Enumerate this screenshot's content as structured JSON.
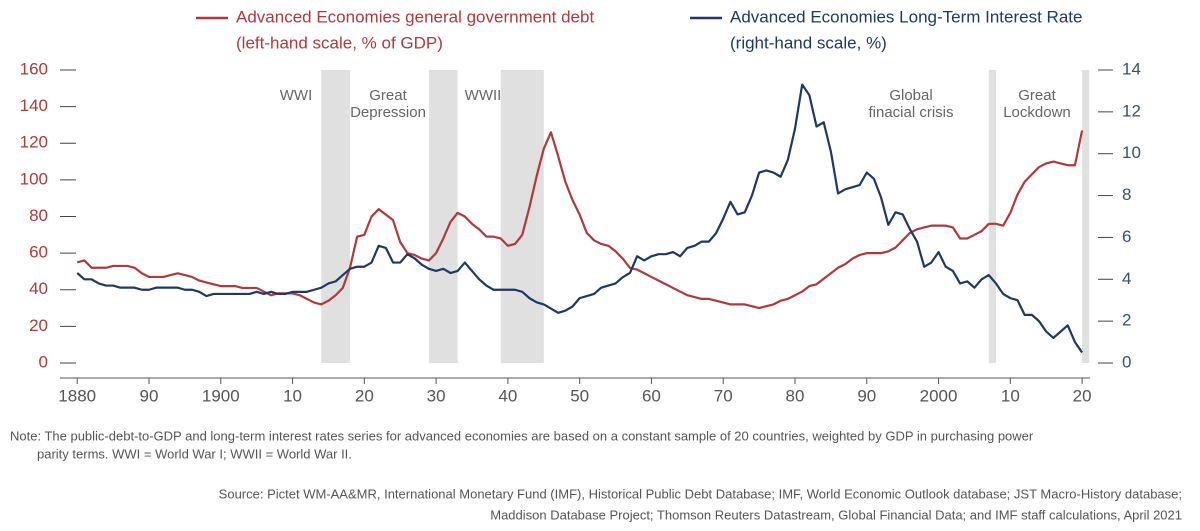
{
  "chart_data": {
    "type": "line",
    "x": [
      1880,
      1881,
      1882,
      1883,
      1884,
      1885,
      1886,
      1887,
      1888,
      1889,
      1890,
      1891,
      1892,
      1893,
      1894,
      1895,
      1896,
      1897,
      1898,
      1899,
      1900,
      1901,
      1902,
      1903,
      1904,
      1905,
      1906,
      1907,
      1908,
      1909,
      1910,
      1911,
      1912,
      1913,
      1914,
      1915,
      1916,
      1917,
      1918,
      1919,
      1920,
      1921,
      1922,
      1923,
      1924,
      1925,
      1926,
      1927,
      1928,
      1929,
      1930,
      1931,
      1932,
      1933,
      1934,
      1935,
      1936,
      1937,
      1938,
      1939,
      1940,
      1941,
      1942,
      1943,
      1944,
      1945,
      1946,
      1947,
      1948,
      1949,
      1950,
      1951,
      1952,
      1953,
      1954,
      1955,
      1956,
      1957,
      1958,
      1959,
      1960,
      1961,
      1962,
      1963,
      1964,
      1965,
      1966,
      1967,
      1968,
      1969,
      1970,
      1971,
      1972,
      1973,
      1974,
      1975,
      1976,
      1977,
      1978,
      1979,
      1980,
      1981,
      1982,
      1983,
      1984,
      1985,
      1986,
      1987,
      1988,
      1989,
      1990,
      1991,
      1992,
      1993,
      1994,
      1995,
      1996,
      1997,
      1998,
      1999,
      2000,
      2001,
      2002,
      2003,
      2004,
      2005,
      2006,
      2007,
      2008,
      2009,
      2010,
      2011,
      2012,
      2013,
      2014,
      2015,
      2016,
      2017,
      2018,
      2019,
      2020
    ],
    "series": [
      {
        "name": "Advanced Economies general government debt",
        "scale": "(left-hand scale, % of GDP)",
        "color": "#b0393b",
        "axis": "y",
        "values": [
          55,
          56,
          52,
          52,
          52,
          53,
          53,
          53,
          52,
          49,
          47,
          47,
          47,
          48,
          49,
          48,
          47,
          45,
          44,
          43,
          42,
          42,
          42,
          41,
          41,
          41,
          39,
          37,
          38,
          38,
          38,
          37,
          35,
          33,
          32,
          34,
          37,
          41,
          52,
          69,
          70,
          80,
          84,
          81,
          78,
          66,
          60,
          59,
          57,
          56,
          60,
          68,
          77,
          82,
          80,
          76,
          73,
          69,
          69,
          68,
          64,
          65,
          70,
          85,
          102,
          117,
          126,
          113,
          99,
          89,
          81,
          71,
          67,
          65,
          64,
          61,
          57,
          52,
          51,
          49,
          47,
          45,
          43,
          41,
          39,
          37,
          36,
          35,
          35,
          34,
          33,
          32,
          32,
          32,
          31,
          30,
          31,
          32,
          34,
          35,
          37,
          39,
          42,
          43,
          46,
          49,
          52,
          54,
          57,
          59,
          60,
          60,
          60,
          61,
          63,
          67,
          71,
          73,
          74,
          75,
          75,
          75,
          74,
          68,
          68,
          70,
          72,
          76,
          76,
          75,
          82,
          92,
          99,
          103,
          107,
          109,
          110,
          109,
          108,
          108,
          127
        ]
      },
      {
        "name": "Advanced Economies Long-Term Interest Rate",
        "scale": "(right-hand scale, %)",
        "color": "#1f3864",
        "axis": "y2",
        "values": [
          4.3,
          4.0,
          4.0,
          3.8,
          3.7,
          3.7,
          3.6,
          3.6,
          3.6,
          3.5,
          3.5,
          3.6,
          3.6,
          3.6,
          3.6,
          3.5,
          3.5,
          3.4,
          3.2,
          3.3,
          3.3,
          3.3,
          3.3,
          3.3,
          3.3,
          3.4,
          3.3,
          3.4,
          3.3,
          3.3,
          3.4,
          3.4,
          3.4,
          3.5,
          3.6,
          3.8,
          3.9,
          4.2,
          4.5,
          4.6,
          4.6,
          4.8,
          5.6,
          5.5,
          4.8,
          4.8,
          5.2,
          5.0,
          4.7,
          4.5,
          4.4,
          4.5,
          4.3,
          4.4,
          4.8,
          4.4,
          4.0,
          3.7,
          3.5,
          3.5,
          3.5,
          3.5,
          3.4,
          3.1,
          2.9,
          2.8,
          2.6,
          2.4,
          2.5,
          2.7,
          3.1,
          3.2,
          3.3,
          3.6,
          3.7,
          3.8,
          4.1,
          4.3,
          5.1,
          4.9,
          5.1,
          5.2,
          5.2,
          5.3,
          5.1,
          5.5,
          5.6,
          5.8,
          5.8,
          6.2,
          6.9,
          7.7,
          7.1,
          7.2,
          8.0,
          9.1,
          9.2,
          9.1,
          8.9,
          9.7,
          11.2,
          13.3,
          12.8,
          11.3,
          11.5,
          10.1,
          8.1,
          8.3,
          8.4,
          8.5,
          9.1,
          8.8,
          7.9,
          6.6,
          7.2,
          7.1,
          6.4,
          5.8,
          4.6,
          4.8,
          5.3,
          4.6,
          4.4,
          3.8,
          3.9,
          3.6,
          4.0,
          4.2,
          3.8,
          3.3,
          3.1,
          3.0,
          2.3,
          2.3,
          2.0,
          1.5,
          1.2,
          1.5,
          1.8,
          1.0,
          0.5
        ]
      }
    ],
    "xlim": [
      1877.6,
      2021.1
    ],
    "xticks": [
      {
        "value": 1880,
        "label": "1880"
      },
      {
        "value": 1890,
        "label": "90"
      },
      {
        "value": 1900,
        "label": "1900"
      },
      {
        "value": 1910,
        "label": "10"
      },
      {
        "value": 1920,
        "label": "20"
      },
      {
        "value": 1930,
        "label": "30"
      },
      {
        "value": 1940,
        "label": "40"
      },
      {
        "value": 1950,
        "label": "50"
      },
      {
        "value": 1960,
        "label": "60"
      },
      {
        "value": 1970,
        "label": "70"
      },
      {
        "value": 1980,
        "label": "80"
      },
      {
        "value": 1990,
        "label": "90"
      },
      {
        "value": 2000,
        "label": "2000"
      },
      {
        "value": 2010,
        "label": "10"
      },
      {
        "value": 2020,
        "label": "20"
      }
    ],
    "ylim": [
      0,
      160
    ],
    "yticks": [
      0,
      20,
      40,
      60,
      80,
      100,
      120,
      140,
      160
    ],
    "y2lim": [
      0,
      14
    ],
    "y2ticks": [
      0,
      2,
      4,
      6,
      8,
      10,
      12,
      14
    ],
    "shaded_periods": [
      {
        "label": [
          "WWI"
        ],
        "start": 1914,
        "end": 1918
      },
      {
        "label": [
          "Great",
          "Depression"
        ],
        "start": 1929,
        "end": 1933
      },
      {
        "label": [
          "WWII"
        ],
        "start": 1939,
        "end": 1945
      },
      {
        "label": [
          "Global",
          "finacial crisis"
        ],
        "start": 2007,
        "end": 2008
      },
      {
        "label": [
          "Great",
          "Lockdown"
        ],
        "start": 2020,
        "end": 2021
      }
    ],
    "note": [
      "Note: The public-debt-to-GDP and long-term interest rates series for advanced economies are based on a constant sample of 20 countries, weighted by GDP in purchasing power",
      "parity terms. WWI = World War I; WWII = World War II."
    ],
    "source": [
      "Source: Pictet WM-AA&MR, International Monetary Fund (IMF), Historical Public Debt Database; IMF, World Economic Outlook database; JST Macro-History database;",
      "Maddison Database Project; Thomson Reuters Datastream, Global Financial Data; and IMF staff calculations, April 2021"
    ]
  }
}
